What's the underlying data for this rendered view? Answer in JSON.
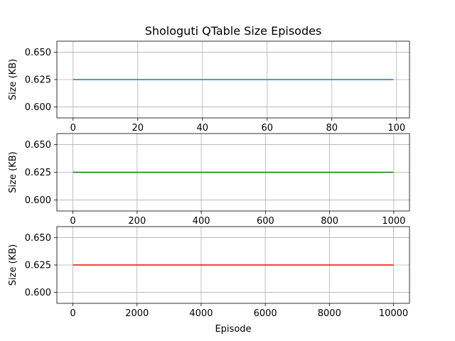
{
  "chart_data": {
    "title": "Shologuti QTable Size Episodes",
    "xlabel": "Episode",
    "grid": true,
    "panels": [
      {
        "type": "line",
        "ylabel": "Size (KB)",
        "color": "#1f77b4",
        "x": [
          0,
          99
        ],
        "y": [
          0.625,
          0.625
        ],
        "xlim": [
          -5,
          104
        ],
        "ylim": [
          0.59,
          0.66
        ],
        "xticks": [
          0,
          20,
          40,
          60,
          80,
          100
        ],
        "yticks": [
          0.6,
          0.625,
          0.65
        ],
        "xtick_labels": [
          "0",
          "20",
          "40",
          "60",
          "80",
          "100"
        ],
        "ytick_labels": [
          "0.600",
          "0.625",
          "0.650"
        ]
      },
      {
        "type": "line",
        "ylabel": "Size (KB)",
        "color": "#008000",
        "x": [
          0,
          999
        ],
        "y": [
          0.625,
          0.625
        ],
        "xlim": [
          -50,
          1049
        ],
        "ylim": [
          0.59,
          0.66
        ],
        "xticks": [
          0,
          200,
          400,
          600,
          800,
          1000
        ],
        "yticks": [
          0.6,
          0.625,
          0.65
        ],
        "xtick_labels": [
          "0",
          "200",
          "400",
          "600",
          "800",
          "1000"
        ],
        "ytick_labels": [
          "0.600",
          "0.625",
          "0.650"
        ]
      },
      {
        "type": "line",
        "ylabel": "Size (KB)",
        "color": "#ff0000",
        "x": [
          0,
          9999
        ],
        "y": [
          0.625,
          0.625
        ],
        "xlim": [
          -500,
          10499
        ],
        "ylim": [
          0.59,
          0.66
        ],
        "xticks": [
          0,
          2000,
          4000,
          6000,
          8000,
          10000
        ],
        "yticks": [
          0.6,
          0.625,
          0.65
        ],
        "xtick_labels": [
          "0",
          "2000",
          "4000",
          "6000",
          "8000",
          "10000"
        ],
        "ytick_labels": [
          "0.600",
          "0.625",
          "0.650"
        ]
      }
    ]
  }
}
